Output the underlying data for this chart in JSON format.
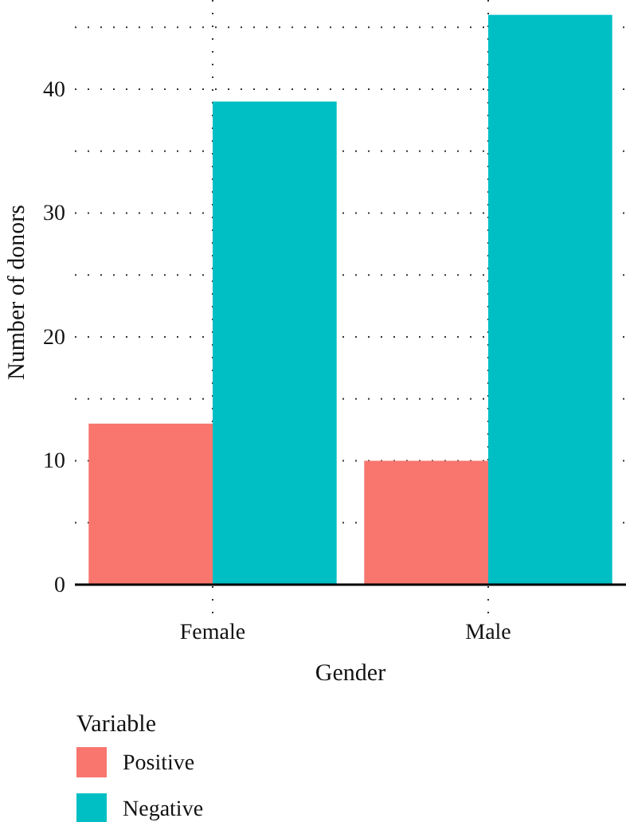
{
  "chart_data": {
    "type": "bar",
    "xlabel": "Gender",
    "ylabel": "Number of donors",
    "legend_title": "Variable",
    "categories": [
      "Female",
      "Male"
    ],
    "series": [
      {
        "name": "Positive",
        "color": "#f8766d",
        "values": [
          13,
          10
        ]
      },
      {
        "name": "Negative",
        "color": "#00bfc4",
        "values": [
          39,
          46
        ]
      }
    ],
    "ylim": [
      0,
      47.2
    ],
    "yticks": [
      0,
      {
        "value": 5,
        "label": null
      },
      10,
      {
        "value": 15,
        "label": null
      },
      20,
      {
        "value": 25,
        "label": null
      },
      30,
      {
        "value": 35,
        "label": null
      },
      40,
      {
        "value": 45,
        "label": null
      }
    ],
    "grid": true,
    "legend": "bottom left"
  }
}
